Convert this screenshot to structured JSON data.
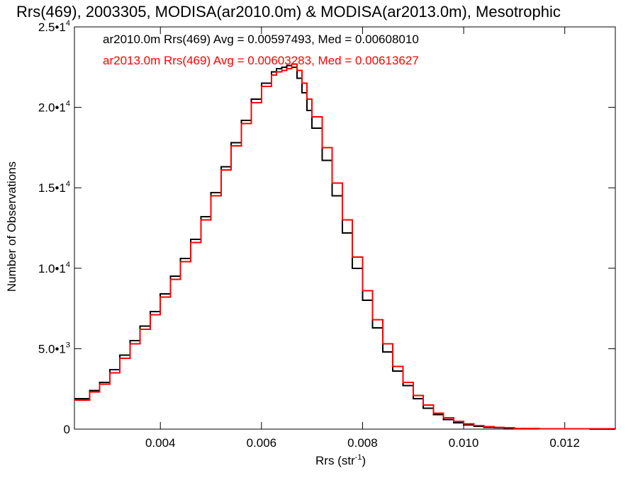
{
  "chart_data": {
    "type": "line",
    "title": "Rrs(469), 2003305, MODISA(ar2010.0m) & MODISA(ar2013.0m), Mesotrophic",
    "xlabel": "Rrs (str",
    "xlabel_sup": "-1",
    "xlabel_end": ")",
    "ylabel": "Number of Observations",
    "xlim": [
      0.0023,
      0.013
    ],
    "ylim": [
      0,
      25000
    ],
    "x_ticks": [
      {
        "value": 0.004,
        "label": "0.004"
      },
      {
        "value": 0.006,
        "label": "0.006"
      },
      {
        "value": 0.008,
        "label": "0.008"
      },
      {
        "value": 0.01,
        "label": "0.010"
      },
      {
        "value": 0.012,
        "label": "0.012"
      }
    ],
    "y_ticks": [
      {
        "value": 0,
        "base": "0",
        "exp": ""
      },
      {
        "value": 5000,
        "base": "5.0•1",
        "exp": "3"
      },
      {
        "value": 10000,
        "base": "1.0•1",
        "exp": "4"
      },
      {
        "value": 15000,
        "base": "1.5•1",
        "exp": "4"
      },
      {
        "value": 20000,
        "base": "2.0•1",
        "exp": "4"
      },
      {
        "value": 25000,
        "base": "2.5•1",
        "exp": "4"
      }
    ],
    "annotations": [
      {
        "text": "ar2010.0m Rrs(469) Avg = 0.00597493, Med = 0.00608010",
        "color": "#000000"
      },
      {
        "text": "ar2013.0m Rrs(469) Avg = 0.00603283, Med = 0.00613627",
        "color": "#ff0000"
      }
    ],
    "series": [
      {
        "color": "#000000",
        "x": [
          0.0023,
          0.0026,
          0.0028,
          0.003,
          0.0032,
          0.0034,
          0.0036,
          0.0038,
          0.004,
          0.0042,
          0.0044,
          0.0046,
          0.0048,
          0.005,
          0.0052,
          0.0054,
          0.0056,
          0.0058,
          0.006,
          0.0062,
          0.0063,
          0.0064,
          0.0065,
          0.0066,
          0.0067,
          0.0068,
          0.0069,
          0.007,
          0.0072,
          0.0074,
          0.0076,
          0.0078,
          0.008,
          0.0082,
          0.0084,
          0.0086,
          0.0088,
          0.009,
          0.0092,
          0.0094,
          0.0096,
          0.0098,
          0.01,
          0.0102,
          0.0104,
          0.0106,
          0.0108,
          0.011,
          0.0115,
          0.012,
          0.0125,
          0.013
        ],
        "y": [
          1900,
          2400,
          2900,
          3700,
          4600,
          5500,
          6400,
          7300,
          8400,
          9500,
          10600,
          11800,
          13200,
          14700,
          16300,
          17800,
          19200,
          20500,
          21500,
          22200,
          22400,
          22500,
          22600,
          22500,
          21800,
          20900,
          19800,
          18700,
          16700,
          14500,
          12200,
          10000,
          8000,
          6300,
          4800,
          3600,
          2700,
          1900,
          1300,
          900,
          600,
          400,
          260,
          180,
          120,
          90,
          60,
          45,
          25,
          15,
          10,
          5
        ]
      },
      {
        "color": "#ff0000",
        "x": [
          0.0023,
          0.0026,
          0.0028,
          0.003,
          0.0032,
          0.0034,
          0.0036,
          0.0038,
          0.004,
          0.0042,
          0.0044,
          0.0046,
          0.0048,
          0.005,
          0.0052,
          0.0054,
          0.0056,
          0.0058,
          0.006,
          0.0062,
          0.0063,
          0.0064,
          0.0065,
          0.0066,
          0.0067,
          0.0068,
          0.0069,
          0.007,
          0.0072,
          0.0074,
          0.0076,
          0.0078,
          0.008,
          0.0082,
          0.0084,
          0.0086,
          0.0088,
          0.009,
          0.0092,
          0.0094,
          0.0096,
          0.0098,
          0.01,
          0.0102,
          0.0104,
          0.0106,
          0.0108,
          0.011,
          0.0115,
          0.012,
          0.0125,
          0.013
        ],
        "y": [
          1800,
          2300,
          2800,
          3500,
          4400,
          5300,
          6200,
          7100,
          8200,
          9300,
          10400,
          11600,
          13000,
          14500,
          16100,
          17600,
          19000,
          20300,
          21300,
          22000,
          22200,
          22300,
          22400,
          22700,
          22300,
          21500,
          20500,
          19400,
          17500,
          15300,
          13000,
          10700,
          8600,
          6800,
          5300,
          3900,
          2900,
          2100,
          1500,
          1000,
          700,
          480,
          320,
          220,
          150,
          110,
          80,
          55,
          30,
          18,
          12,
          6
        ]
      }
    ]
  }
}
